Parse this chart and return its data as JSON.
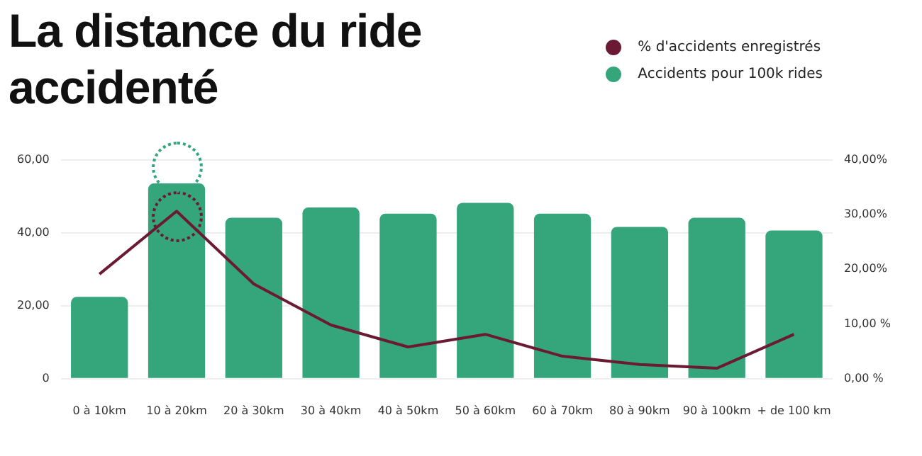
{
  "chart_data": {
    "type": "bar",
    "title": "La distance du ride accidenté",
    "categories": [
      "0 à 10km",
      "10 à 20km",
      "20 à 30km",
      "30 à 40km",
      "40 à 50km",
      "50 à 60km",
      "60 à 70km",
      "80 à 90km",
      "90 à 100km",
      "+ de 100 km"
    ],
    "series": [
      {
        "name": "% d'accidents enregistrés",
        "type": "line",
        "axis": "y2",
        "color": "#6b1a33",
        "values": [
          19.1,
          30.6,
          17.3,
          9.8,
          5.8,
          8.1,
          4.1,
          2.6,
          1.9,
          8.1
        ]
      },
      {
        "name": "Accidents pour 100k rides",
        "color": "#35a57c",
        "values": [
          22.4,
          53.5,
          44.1,
          46.9,
          45.2,
          48.2,
          45.2,
          41.6,
          44.1,
          40.6
        ]
      }
    ],
    "ylim": [
      0,
      60
    ],
    "yticks": [
      {
        "value": 0,
        "label": "0"
      },
      {
        "value": 20,
        "label": "20,00"
      },
      {
        "value": 40,
        "label": "40,00"
      },
      {
        "value": 60,
        "label": "60,00"
      }
    ],
    "y2lim": [
      0,
      40
    ],
    "y2ticks": [
      {
        "value": 0,
        "label": "0,00 %"
      },
      {
        "value": 10,
        "label": "10,00 %"
      },
      {
        "value": 20,
        "label": "20,00%"
      },
      {
        "value": 30,
        "label": "30,00%"
      },
      {
        "value": 40,
        "label": "40,00%"
      }
    ],
    "grid": "y",
    "legend": "top right",
    "marker": "none"
  }
}
